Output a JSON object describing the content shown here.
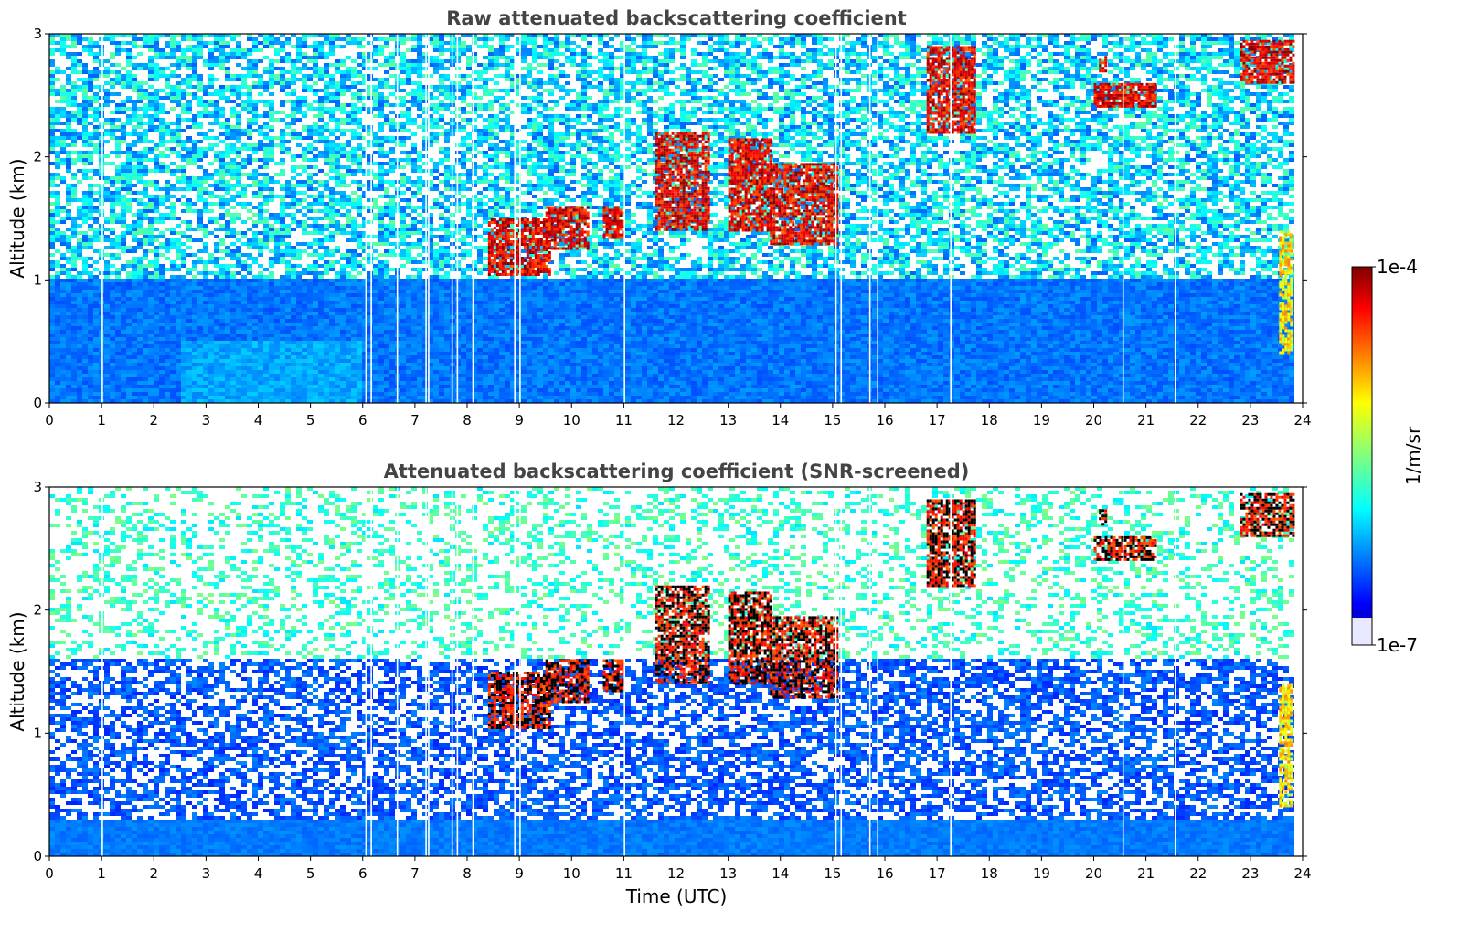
{
  "chart_data": {
    "type": "heatmap",
    "colorbar": {
      "label": "1/m/sr",
      "min_label": "1e-7",
      "max_label": "1e-4",
      "scale": "log",
      "range": [
        1e-07,
        0.0001
      ],
      "colormap": "jet",
      "low_color": "#ffffff"
    },
    "xlabel": "Time (UTC)",
    "xlim": [
      0,
      24
    ],
    "xticks": [
      "0",
      "1",
      "2",
      "3",
      "4",
      "5",
      "6",
      "7",
      "8",
      "9",
      "10",
      "11",
      "12",
      "13",
      "14",
      "15",
      "16",
      "17",
      "18",
      "19",
      "20",
      "21",
      "22",
      "23",
      "24"
    ],
    "legend": "colorbar right",
    "panels": [
      {
        "title": "Raw attenuated backscattering coefficient",
        "ylabel": "Altitude (km)",
        "ylim": [
          0,
          3
        ],
        "yticks": [
          "0",
          "1",
          "2",
          "3"
        ],
        "noise": "full",
        "boundary_layer_km": 1.0,
        "clouds": [
          {
            "t0": 8.4,
            "t1": 9.6,
            "z0": 1.05,
            "z1": 1.5
          },
          {
            "t0": 9.5,
            "t1": 10.3,
            "z0": 1.25,
            "z1": 1.6
          },
          {
            "t0": 10.6,
            "t1": 11.0,
            "z0": 1.35,
            "z1": 1.6
          },
          {
            "t0": 11.6,
            "t1": 12.6,
            "z0": 1.4,
            "z1": 2.2
          },
          {
            "t0": 13.0,
            "t1": 13.8,
            "z0": 1.4,
            "z1": 2.15
          },
          {
            "t0": 13.8,
            "t1": 15.1,
            "z0": 1.3,
            "z1": 1.95
          },
          {
            "t0": 16.8,
            "t1": 17.7,
            "z0": 2.2,
            "z1": 2.9
          },
          {
            "t0": 20.0,
            "t1": 21.2,
            "z0": 2.4,
            "z1": 2.6
          },
          {
            "t0": 20.1,
            "t1": 20.25,
            "z0": 2.7,
            "z1": 2.82
          },
          {
            "t0": 22.8,
            "t1": 23.8,
            "z0": 2.6,
            "z1": 2.95
          },
          {
            "t0": 23.55,
            "t1": 23.8,
            "z0": 0.4,
            "z1": 1.4
          }
        ]
      },
      {
        "title": "Attenuated backscattering coefficient (SNR-screened)",
        "ylabel": "Altitude (km)",
        "ylim": [
          0,
          3
        ],
        "yticks": [
          "0",
          "1",
          "2",
          "3"
        ],
        "noise": "screened",
        "boundary_layer_km": 1.6,
        "clouds": [
          {
            "t0": 8.4,
            "t1": 9.6,
            "z0": 1.05,
            "z1": 1.5
          },
          {
            "t0": 9.5,
            "t1": 10.3,
            "z0": 1.25,
            "z1": 1.6
          },
          {
            "t0": 10.6,
            "t1": 11.0,
            "z0": 1.35,
            "z1": 1.6
          },
          {
            "t0": 11.6,
            "t1": 12.6,
            "z0": 1.4,
            "z1": 2.2
          },
          {
            "t0": 13.0,
            "t1": 13.8,
            "z0": 1.4,
            "z1": 2.15
          },
          {
            "t0": 13.8,
            "t1": 15.1,
            "z0": 1.3,
            "z1": 1.95
          },
          {
            "t0": 16.8,
            "t1": 17.7,
            "z0": 2.2,
            "z1": 2.9
          },
          {
            "t0": 20.0,
            "t1": 21.2,
            "z0": 2.4,
            "z1": 2.6
          },
          {
            "t0": 20.1,
            "t1": 20.25,
            "z0": 2.7,
            "z1": 2.82
          },
          {
            "t0": 22.8,
            "t1": 23.8,
            "z0": 2.6,
            "z1": 2.95
          },
          {
            "t0": 23.55,
            "t1": 23.8,
            "z0": 0.4,
            "z1": 1.4
          }
        ]
      }
    ]
  }
}
